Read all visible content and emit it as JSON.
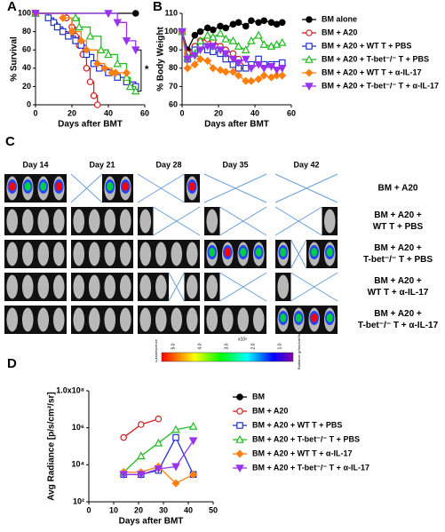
{
  "chart_data": [
    {
      "panel": "A",
      "type": "line",
      "step": true,
      "ylabel": "% Survival",
      "xlabel": "Days after BMT",
      "xlim": [
        0,
        60
      ],
      "xticks": [
        0,
        20,
        40,
        60
      ],
      "ylim": [
        0,
        100
      ],
      "yticks": [
        0,
        20,
        40,
        60,
        80,
        100
      ],
      "annotation": "*",
      "series": [
        {
          "color": "#000000",
          "marker": "circle",
          "filled": true,
          "x": [
            0,
            55
          ],
          "values": [
            100,
            100
          ]
        },
        {
          "color": "#cc2222",
          "marker": "circle",
          "filled": false,
          "x": [
            0,
            17,
            20,
            22,
            24,
            26,
            28,
            30,
            32,
            34
          ],
          "values": [
            100,
            95,
            85,
            75,
            65,
            55,
            40,
            25,
            10,
            0
          ]
        },
        {
          "color": "#2233cc",
          "marker": "square",
          "filled": false,
          "x": [
            0,
            7,
            10,
            12,
            15,
            18,
            22,
            25,
            28,
            32,
            35,
            40,
            45,
            50,
            55
          ],
          "values": [
            100,
            95,
            90,
            85,
            80,
            75,
            70,
            65,
            55,
            45,
            40,
            35,
            30,
            25,
            20
          ]
        },
        {
          "color": "#22bb22",
          "marker": "triangle",
          "filled": false,
          "x": [
            0,
            22,
            24,
            30,
            36,
            40,
            45,
            50,
            52,
            55
          ],
          "values": [
            100,
            95,
            85,
            75,
            60,
            55,
            45,
            30,
            20,
            15
          ]
        },
        {
          "color": "#ff7f0e",
          "marker": "diamond",
          "filled": true,
          "x": [
            0,
            15,
            20,
            25,
            28,
            34,
            38,
            42,
            44,
            50
          ],
          "values": [
            100,
            95,
            80,
            70,
            60,
            45,
            40,
            35,
            35,
            35
          ]
        },
        {
          "color": "#9933ee",
          "marker": "tri-down",
          "filled": true,
          "x": [
            0,
            40,
            45,
            50,
            55
          ],
          "values": [
            100,
            100,
            90,
            70,
            60
          ]
        }
      ]
    },
    {
      "panel": "B",
      "type": "line",
      "ylabel": "% Body Weight",
      "xlabel": "Days after BMT",
      "xlim": [
        0,
        60
      ],
      "xticks": [
        0,
        20,
        40,
        60
      ],
      "ylim": [
        60,
        110
      ],
      "yticks": [
        60,
        70,
        80,
        90,
        100,
        110
      ],
      "legend": "right",
      "x": [
        0,
        3,
        7,
        10,
        14,
        17,
        21,
        24,
        28,
        31,
        35,
        38,
        42,
        45,
        49,
        52,
        55
      ],
      "series": [
        {
          "name": "BM alone",
          "color": "#000000",
          "marker": "circle",
          "filled": true,
          "values": [
            100,
            90,
            98,
            100,
            102,
            101,
            103,
            102,
            104,
            105,
            103,
            106,
            105,
            106,
            105,
            104,
            105
          ]
        },
        {
          "name": "BM + A20",
          "color": "#cc2222",
          "marker": "circle",
          "filled": false,
          "values": [
            100,
            88,
            92,
            95,
            96,
            95,
            92,
            90,
            88,
            85,
            80,
            null,
            null,
            null,
            null,
            null,
            null
          ]
        },
        {
          "name": "BM + A20 + WT T + PBS",
          "color": "#2233cc",
          "marker": "square",
          "filled": false,
          "values": [
            100,
            85,
            90,
            92,
            90,
            89,
            88,
            85,
            82,
            80,
            80,
            82,
            85,
            82,
            82,
            82,
            83
          ]
        },
        {
          "name": "BM + A20 + T-bet⁻/⁻ T + PBS",
          "color": "#22bb22",
          "marker": "triangle",
          "filled": false,
          "values": [
            100,
            86,
            88,
            95,
            98,
            97,
            99,
            96,
            95,
            92,
            90,
            95,
            98,
            93,
            92,
            93,
            94
          ]
        },
        {
          "name": "BM + A20 + WT T + α-IL-17",
          "color": "#ff7f0e",
          "marker": "diamond",
          "filled": true,
          "values": [
            100,
            80,
            82,
            85,
            84,
            80,
            79,
            78,
            78,
            76,
            73,
            73,
            74,
            76,
            75,
            76,
            76
          ]
        },
        {
          "name": "BM + A20 + T-bet⁻/⁻ T + α-IL-17",
          "color": "#9933ee",
          "marker": "tri-down",
          "filled": true,
          "values": [
            100,
            85,
            87,
            90,
            92,
            92,
            90,
            88,
            85,
            83,
            85,
            80,
            82,
            80,
            81,
            79,
            80
          ]
        }
      ]
    },
    {
      "panel": "D",
      "type": "line",
      "ylog": true,
      "ylabel": "Avg Radiance [p/s/cm²/sr]",
      "xlabel": "Days after BMT",
      "xlim": [
        0,
        50
      ],
      "xticks": [
        0,
        10,
        20,
        30,
        40,
        50
      ],
      "ylim": [
        100,
        100000000
      ],
      "yticks": [
        {
          "value": 100,
          "label": "10²"
        },
        {
          "value": 10000,
          "label": "10⁴"
        },
        {
          "value": 1000000,
          "label": "10⁶"
        },
        {
          "value": 100000000,
          "label": "1.0x10⁸"
        }
      ],
      "legend": "right",
      "x": [
        14,
        21,
        28,
        35,
        42
      ],
      "series": [
        {
          "name": "BM",
          "color": "#000000",
          "marker": "circle",
          "filled": true,
          "values": [
            null,
            null,
            null,
            null,
            null
          ]
        },
        {
          "name": "BM + A20",
          "color": "#cc2222",
          "marker": "circle",
          "filled": false,
          "values": [
            300000,
            1500000,
            3000000,
            null,
            null
          ]
        },
        {
          "name": "BM + A20 + WT T + PBS",
          "color": "#2233cc",
          "marker": "square",
          "filled": false,
          "values": [
            3000,
            3000,
            5000,
            300000,
            3000
          ]
        },
        {
          "name": "BM + A20 + T-bet⁻/⁻ T + PBS",
          "color": "#22bb22",
          "marker": "triangle",
          "filled": false,
          "values": [
            4000,
            30000,
            150000,
            800000,
            1200000
          ]
        },
        {
          "name": "BM + A20 + WT T + α-IL-17",
          "color": "#ff7f0e",
          "marker": "diamond",
          "filled": true,
          "values": [
            4000,
            4000,
            8000,
            1000,
            3000
          ]
        },
        {
          "name": "BM + A20 + T-bet⁻/⁻ T + α-IL-17",
          "color": "#9933ee",
          "marker": "tri-down",
          "filled": true,
          "values": [
            3000,
            3000,
            6000,
            8000,
            200000
          ]
        }
      ]
    }
  ],
  "panel_c": {
    "panel": "C",
    "days": [
      "Day 14",
      "Day 21",
      "Day 28",
      "Day 35",
      "Day 42"
    ],
    "groups": [
      [
        "BM + A20"
      ],
      [
        "BM + A20 +",
        "WT T + PBS"
      ],
      [
        "BM + A20 +",
        "T-bet⁻/⁻ T + PBS"
      ],
      [
        "BM + A20 +",
        "WT T + α-IL-17"
      ],
      [
        "BM + A20 +",
        "T-bet⁻/⁻ T + α-IL-17"
      ]
    ],
    "colorbar": {
      "ticks": [
        "5.0",
        "4.0",
        "3.0",
        "2.0",
        "1.0"
      ],
      "unit": "x10⁶",
      "left": "Luminescence",
      "right": "Radiance (p/sec/cm²/sr)"
    }
  }
}
